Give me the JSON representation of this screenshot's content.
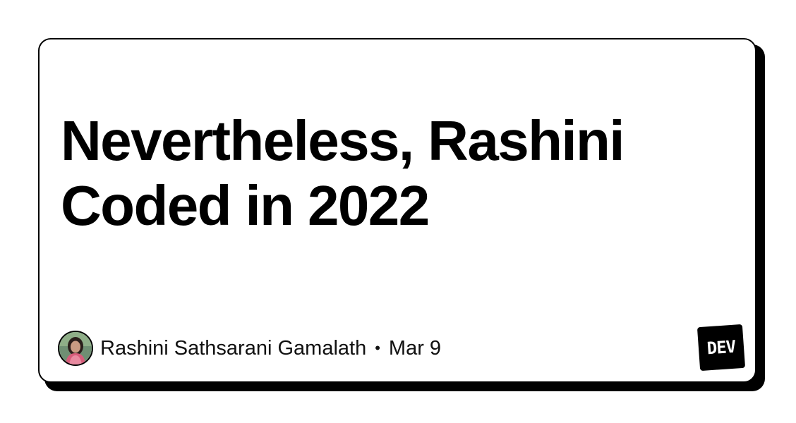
{
  "card": {
    "title_lines": [
      "Nevertheless, Rashini",
      "Coded in 2022"
    ],
    "author": "Rashini Sathsarani Gamalath",
    "separator": "•",
    "date": "Mar 9",
    "logo_text": "DEV"
  },
  "colors": {
    "background": "#ffffff",
    "border": "#000000",
    "text": "#000000",
    "logo_bg": "#000000",
    "logo_text": "#ffffff"
  },
  "icons": {
    "avatar": "author-avatar",
    "logo": "dev-logo"
  }
}
